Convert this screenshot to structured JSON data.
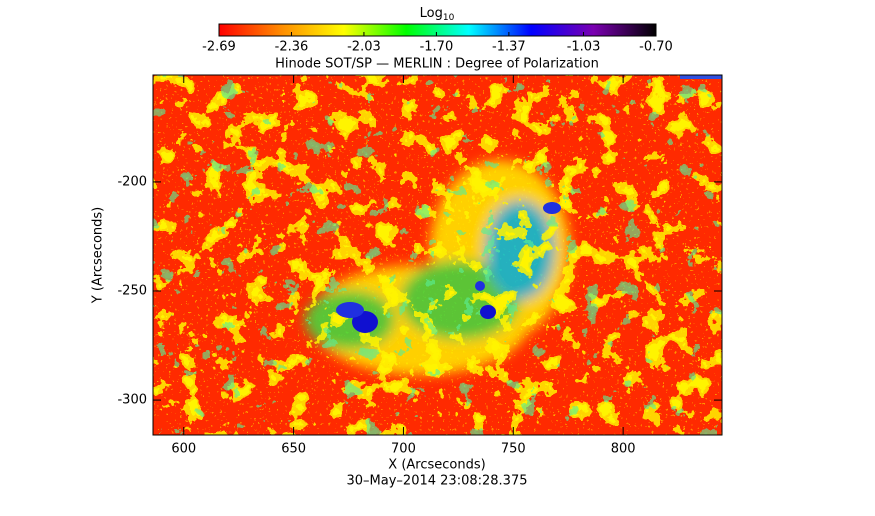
{
  "chart_data": {
    "type": "heatmap",
    "title": "Hinode SOT/SP — MERLIN : Degree of Polarization",
    "x_label": "X (Arcseconds)",
    "y_label": "Y (Arcseconds)",
    "footer": "30–May–2014 23:08:28.375",
    "xlim": [
      586,
      845
    ],
    "xticks": [
      600,
      650,
      700,
      750,
      800
    ],
    "ylim": [
      -316,
      -151
    ],
    "yticks": [
      -200,
      -250,
      -300
    ],
    "colorbar": {
      "label": "Log",
      "label_subscript": "10",
      "clim": [
        -2.69,
        -0.7
      ],
      "ticks": [
        -2.69,
        -2.36,
        -2.03,
        {
          "value": -1.7,
          "label": "-1.70"
        },
        -1.37,
        -1.03,
        {
          "value": -0.7,
          "label": "-0.70"
        }
      ],
      "colormap": [
        "#ff0000",
        "#ff8c00",
        "#ffff00",
        "#00ff00",
        "#00ffff",
        "#0000ff",
        "#7a00b0",
        "#000000"
      ]
    }
  }
}
